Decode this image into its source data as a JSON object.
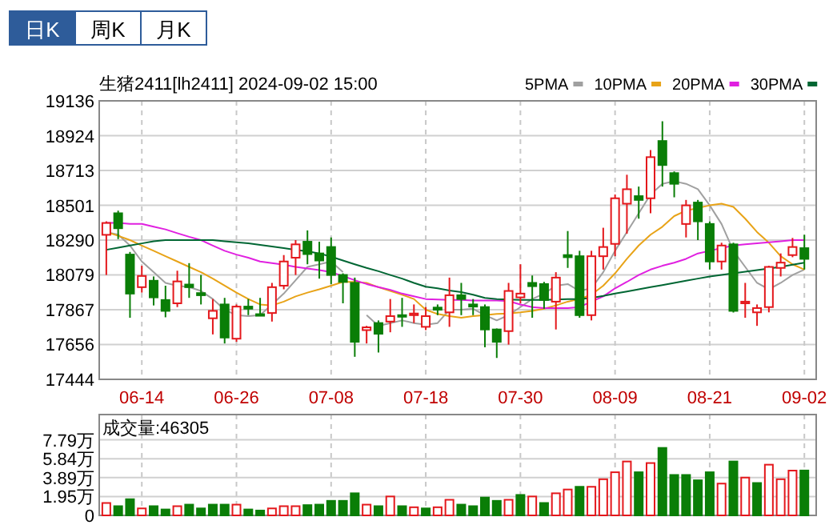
{
  "chart_data": [
    {
      "type": "candlestick",
      "title": "生猪2411[lh2411] 2024-09-02 15:00",
      "annotations": [
        "日K",
        "周K",
        "月K"
      ],
      "categories": [
        null,
        null,
        null,
        "06-14",
        null,
        null,
        null,
        null,
        null,
        null,
        null,
        "06-26",
        null,
        null,
        null,
        null,
        null,
        null,
        null,
        "07-08",
        null,
        null,
        null,
        null,
        null,
        null,
        null,
        "07-18",
        null,
        null,
        null,
        null,
        null,
        null,
        null,
        "07-30",
        null,
        null,
        null,
        null,
        null,
        null,
        null,
        "08-09",
        null,
        null,
        null,
        null,
        null,
        null,
        null,
        "08-21",
        null,
        null,
        null,
        null,
        null,
        null,
        null,
        "09-02"
      ],
      "ohlc": [
        [
          18322,
          18404,
          18078,
          18394
        ],
        [
          18453,
          18469,
          18296,
          18362
        ],
        [
          18202,
          18218,
          17818,
          17965
        ],
        [
          18004,
          18134,
          17971,
          18072
        ],
        [
          18043,
          18069,
          17893,
          17942
        ],
        [
          17926,
          18013,
          17821,
          17860
        ],
        [
          17906,
          18104,
          17883,
          18039
        ],
        [
          18020,
          18150,
          17939,
          18004
        ],
        [
          17968,
          18078,
          17899,
          17955
        ],
        [
          17815,
          17932,
          17717,
          17860
        ],
        [
          17899,
          17939,
          17662,
          17698
        ],
        [
          17691,
          17899,
          17672,
          17886
        ],
        [
          17886,
          17932,
          17834,
          17873
        ],
        [
          17840,
          17939,
          17834,
          17834
        ],
        [
          17847,
          18030,
          17795,
          18004
        ],
        [
          18013,
          18199,
          17991,
          18160
        ],
        [
          18183,
          18290,
          18078,
          18264
        ],
        [
          18280,
          18349,
          18143,
          18205
        ],
        [
          18209,
          18280,
          18056,
          18166
        ],
        [
          18248,
          18306,
          18023,
          18078
        ],
        [
          18078,
          18088,
          17906,
          18036
        ],
        [
          18030,
          18062,
          17581,
          17672
        ],
        [
          17743,
          17769,
          17662,
          17760
        ],
        [
          17786,
          17802,
          17607,
          17721
        ],
        [
          17795,
          17932,
          17730,
          17828
        ],
        [
          17834,
          17939,
          17763,
          17825
        ],
        [
          17834,
          17899,
          17786,
          17844
        ],
        [
          17763,
          17883,
          17743,
          17828
        ],
        [
          17880,
          17899,
          17834,
          17867
        ],
        [
          17851,
          18062,
          17763,
          17955
        ],
        [
          17955,
          18030,
          17834,
          17932
        ],
        [
          17899,
          17932,
          17834,
          17886
        ],
        [
          17883,
          17899,
          17639,
          17747
        ],
        [
          17747,
          17753,
          17574,
          17672
        ],
        [
          17737,
          18030,
          17655,
          17981
        ],
        [
          17942,
          18143,
          17906,
          17965
        ],
        [
          18030,
          18075,
          17818,
          18010
        ],
        [
          18023,
          18036,
          17873,
          17926
        ],
        [
          17916,
          18095,
          17747,
          18062
        ],
        [
          18199,
          18345,
          18121,
          18186
        ],
        [
          18192,
          18225,
          17818,
          17834
        ],
        [
          17834,
          18225,
          17802,
          18192
        ],
        [
          18192,
          18365,
          18111,
          18248
        ],
        [
          18267,
          18567,
          18192,
          18544
        ],
        [
          18511,
          18687,
          18329,
          18599
        ],
        [
          18557,
          18615,
          18420,
          18534
        ],
        [
          18544,
          18837,
          18453,
          18794
        ],
        [
          18892,
          19012,
          18615,
          18746
        ],
        [
          18697,
          18707,
          18550,
          18632
        ],
        [
          18388,
          18534,
          18306,
          18501
        ],
        [
          18518,
          18534,
          18290,
          18404
        ],
        [
          18388,
          18404,
          18111,
          18160
        ],
        [
          18160,
          18274,
          18111,
          18257
        ],
        [
          18264,
          18274,
          17850,
          17860
        ],
        [
          17906,
          18030,
          17818,
          17916
        ],
        [
          17851,
          17899,
          17769,
          17877
        ],
        [
          17883,
          18134,
          17851,
          18127
        ],
        [
          18121,
          18209,
          18069,
          18153
        ],
        [
          18199,
          18303,
          18186,
          18248
        ],
        [
          18241,
          18323,
          18111,
          18176
        ]
      ],
      "series": [
        {
          "name": "5PMA",
          "type": "line",
          "color": "#a0a0a0",
          "values": [
            18339,
            18323,
            18257,
            18160,
            18095,
            18030,
            18013,
            18004,
            17981,
            17932,
            17867,
            17834,
            17828,
            17834,
            17899,
            17965,
            18046,
            18127,
            18143,
            18160,
            18095,
            null,
            17834,
            17769,
            17786,
            17802,
            17786,
            17776,
            17786,
            17867,
            17867,
            17873,
            17834,
            17802,
            17834,
            17883,
            17932,
            17965,
            18013,
            18023,
            17981,
            17997,
            18095,
            18225,
            18339,
            18453,
            18567,
            18632,
            18648,
            18632,
            18599,
            18501,
            18388,
            18225,
            18127,
            18030,
            17991,
            18030,
            18078,
            18111
          ]
        },
        {
          "name": "10PMA",
          "type": "line",
          "color": "#e8a317",
          "values": [
            18339,
            18316,
            18290,
            18257,
            18225,
            18192,
            18160,
            18127,
            18095,
            18056,
            18013,
            17971,
            17932,
            17899,
            17893,
            17916,
            17948,
            17971,
            17991,
            18013,
            18036,
            18036,
            18030,
            18004,
            17981,
            17958,
            17932,
            17867,
            17841,
            17828,
            17818,
            17828,
            17834,
            17841,
            17844,
            17851,
            17860,
            17873,
            17893,
            17916,
            17932,
            17958,
            18013,
            18088,
            18176,
            18257,
            18323,
            18371,
            18436,
            18469,
            18485,
            18501,
            18511,
            18492,
            18420,
            18339,
            18274,
            18192,
            18143,
            18111
          ]
        },
        {
          "name": "20PMA",
          "type": "line",
          "color": "#e020e0",
          "values": [
            18394,
            18394,
            18388,
            18388,
            18371,
            18355,
            18332,
            18310,
            18290,
            18257,
            18225,
            18202,
            18183,
            18160,
            18150,
            18140,
            18127,
            18117,
            18108,
            18095,
            18072,
            18046,
            18023,
            18004,
            17988,
            17965,
            17948,
            17932,
            17929,
            17926,
            17926,
            17923,
            17923,
            17923,
            17919,
            17899,
            17883,
            17877,
            17877,
            17877,
            17883,
            17916,
            17948,
            17997,
            18036,
            18078,
            18111,
            18134,
            18153,
            18176,
            18209,
            18225,
            18241,
            18257,
            18264,
            18270,
            18277,
            18283,
            18290,
            18290
          ]
        },
        {
          "name": "30PMA",
          "type": "line",
          "color": "#006633",
          "values": [
            18231,
            18244,
            18257,
            18270,
            18283,
            18290,
            18290,
            18290,
            18290,
            18290,
            18283,
            18277,
            18270,
            18261,
            18251,
            18241,
            18231,
            18222,
            18209,
            18189,
            18166,
            18143,
            18121,
            18101,
            18078,
            18056,
            18030,
            18007,
            17997,
            17984,
            17974,
            17958,
            17939,
            17932,
            17929,
            17926,
            17926,
            17926,
            17929,
            17932,
            17932,
            17939,
            17951,
            17965,
            17978,
            17991,
            18004,
            18017,
            18030,
            18043,
            18056,
            18069,
            18078,
            18088,
            18098,
            18108,
            18117,
            18127,
            18140,
            18153
          ]
        }
      ],
      "ylim": [
        17444,
        19136
      ],
      "yticks": [
        17444,
        17656,
        17867,
        18079,
        18290,
        18501,
        18713,
        18924,
        19136
      ],
      "grid": true,
      "legend": "top right"
    },
    {
      "type": "bar",
      "title": "成交量:46305",
      "categories": [
        null,
        null,
        null,
        null,
        null,
        null,
        null,
        null,
        null,
        null,
        null,
        null,
        null,
        null,
        null,
        null,
        null,
        null,
        null,
        null,
        null,
        null,
        null,
        null,
        null,
        null,
        null,
        null,
        null,
        null,
        null,
        null,
        null,
        null,
        null,
        null,
        null,
        null,
        null,
        null,
        null,
        null,
        null,
        null,
        null,
        null,
        null,
        null,
        null,
        null,
        null,
        null,
        null,
        null,
        null,
        null,
        null,
        null,
        null,
        null
      ],
      "values": [
        1.28,
        0.95,
        1.67,
        0.72,
        0.95,
        0.61,
        0.95,
        1.11,
        0.72,
        1.11,
        1.11,
        1.11,
        0.61,
        0.5,
        0.72,
        0.95,
        0.95,
        1.06,
        1.11,
        1.5,
        1.5,
        2.28,
        1.11,
        0.95,
        1.95,
        0.95,
        0.84,
        0.72,
        0.84,
        1.61,
        1.11,
        0.95,
        1.84,
        1.5,
        1.61,
        2.11,
        1.95,
        1.28,
        2.28,
        2.67,
        2.95,
        2.95,
        3.73,
        4.45,
        5.56,
        4.45,
        5.4,
        6.96,
        4.17,
        4.17,
        3.62,
        4.45,
        3.28,
        5.56,
        3.9,
        3.34,
        5.23,
        3.73,
        4.62,
        4.63
      ],
      "colors": [
        "#e4181c",
        "#0a7e07",
        "#0a7e07",
        "#e4181c",
        "#0a7e07",
        "#0a7e07",
        "#e4181c",
        "#0a7e07",
        "#0a7e07",
        "#0a7e07",
        "#0a7e07",
        "#e4181c",
        "#0a7e07",
        "#0a7e07",
        "#e4181c",
        "#e4181c",
        "#e4181c",
        "#0a7e07",
        "#0a7e07",
        "#0a7e07",
        "#0a7e07",
        "#0a7e07",
        "#e4181c",
        "#0a7e07",
        "#e4181c",
        "#0a7e07",
        "#e4181c",
        "#0a7e07",
        "#e4181c",
        "#e4181c",
        "#0a7e07",
        "#0a7e07",
        "#0a7e07",
        "#0a7e07",
        "#e4181c",
        "#0a7e07",
        "#e4181c",
        "#0a7e07",
        "#e4181c",
        "#e4181c",
        "#0a7e07",
        "#e4181c",
        "#e4181c",
        "#e4181c",
        "#e4181c",
        "#0a7e07",
        "#e4181c",
        "#0a7e07",
        "#0a7e07",
        "#0a7e07",
        "#0a7e07",
        "#0a7e07",
        "#e4181c",
        "#0a7e07",
        "#e4181c",
        "#0a7e07",
        "#e4181c",
        "#e4181c",
        "#e4181c",
        "#0a7e07"
      ],
      "ylim": [
        0,
        10.4
      ],
      "yticks": [
        0,
        {
          "value": 1.95,
          "label": "1.95万"
        },
        {
          "value": 3.89,
          "label": "3.89万"
        },
        {
          "value": 5.84,
          "label": "5.84万"
        },
        {
          "value": 7.79,
          "label": "7.79万"
        }
      ],
      "grid": "y",
      "tick_labels": "y"
    }
  ]
}
